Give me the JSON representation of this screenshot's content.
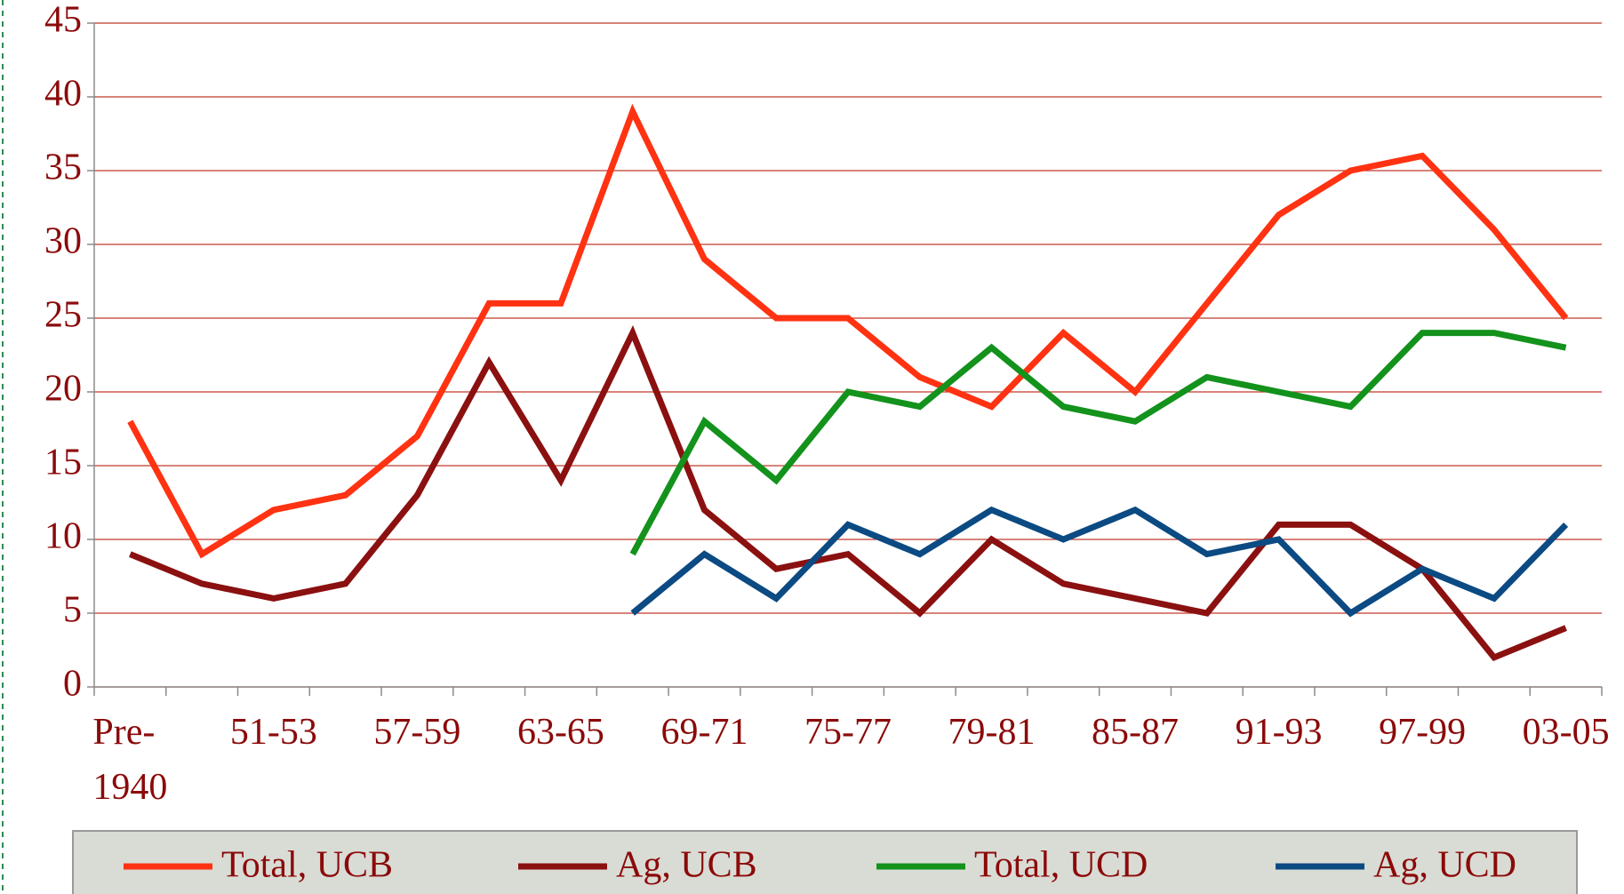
{
  "chart_data": {
    "type": "line",
    "categories": [
      "Pre-\n1940",
      null,
      "51-53",
      null,
      "57-59",
      null,
      "63-65",
      null,
      "69-71",
      null,
      "75-77",
      null,
      "79-81",
      null,
      "85-87",
      null,
      "91-93",
      null,
      "97-99",
      null,
      "03-05"
    ],
    "series": [
      {
        "name": "Total, UCB",
        "color": "#ff3212",
        "values": [
          18,
          9,
          12,
          13,
          17,
          26,
          26,
          39,
          29,
          25,
          25,
          21,
          19,
          24,
          20,
          26,
          32,
          35,
          36,
          31,
          25
        ]
      },
      {
        "name": "Ag, UCB",
        "color": "#8b1010",
        "values": [
          9,
          7,
          6,
          7,
          13,
          22,
          14,
          24,
          12,
          8,
          9,
          5,
          10,
          7,
          6,
          5,
          11,
          11,
          8,
          2,
          4
        ]
      },
      {
        "name": "Total, UCD",
        "color": "#13921c",
        "values": [
          null,
          null,
          null,
          null,
          null,
          null,
          null,
          9,
          18,
          14,
          20,
          19,
          23,
          19,
          18,
          21,
          20,
          19,
          24,
          24,
          23
        ]
      },
      {
        "name": "Ag, UCD",
        "color": "#0b4a82",
        "values": [
          null,
          null,
          null,
          null,
          null,
          null,
          null,
          5,
          9,
          6,
          11,
          9,
          12,
          10,
          12,
          9,
          10,
          5,
          8,
          6,
          11
        ]
      }
    ],
    "ylim": [
      0,
      45
    ],
    "yticks": [
      0,
      5,
      10,
      15,
      20,
      25,
      30,
      35,
      40,
      45
    ],
    "grid": true,
    "grid_color": "#c0392b",
    "legend": "bottom"
  }
}
